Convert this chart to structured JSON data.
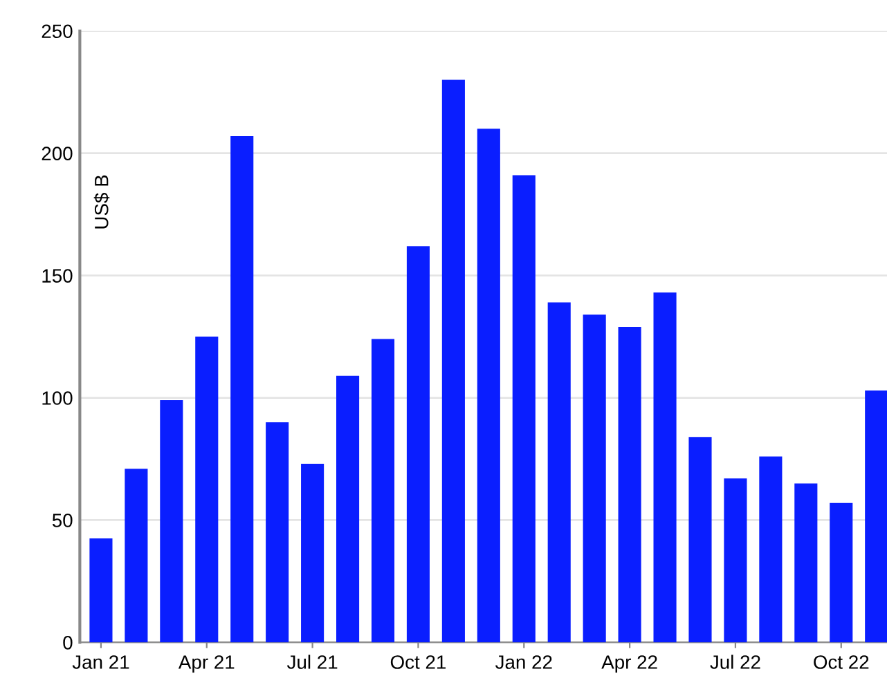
{
  "chart_data": {
    "type": "bar",
    "ylabel": "US$ B",
    "categories": [
      "Jan 21",
      null,
      null,
      "Apr 21",
      null,
      null,
      "Jul 21",
      null,
      null,
      "Oct 21",
      null,
      null,
      "Jan 22",
      null,
      null,
      "Apr 22",
      null,
      null,
      "Jul 22",
      null,
      null,
      "Oct 22",
      null
    ],
    "values": [
      42.5,
      71,
      99,
      125,
      207,
      90,
      73,
      109,
      124,
      162,
      230,
      210,
      191,
      139,
      134,
      129,
      143,
      84,
      67,
      76,
      65,
      57,
      103
    ],
    "color": "#0a1eff",
    "ylim": [
      0,
      250
    ],
    "yticks": [
      0,
      50,
      100,
      150,
      200,
      250
    ],
    "grid": "y",
    "legend": false
  }
}
